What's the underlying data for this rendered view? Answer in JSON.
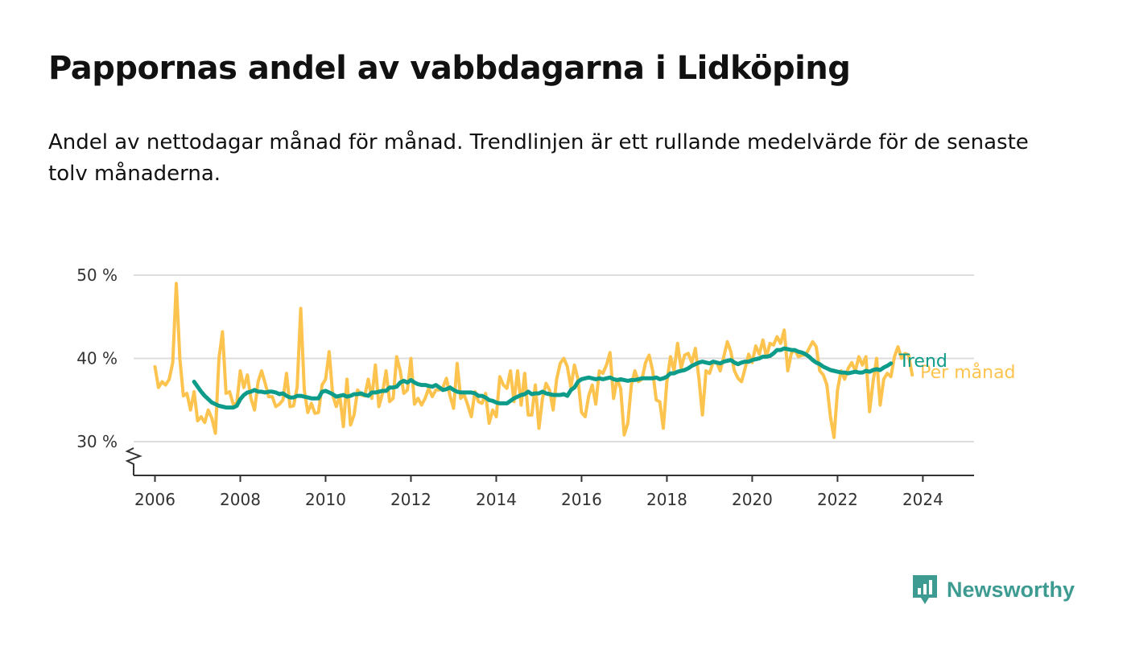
{
  "title": "Pappornas andel av vabbdagarna i Lidköping",
  "subtitle": "Andel av nettodagar månad för månad. Trendlinjen är ett rullande medelvärde för de senaste tolv månaderna.",
  "brand": {
    "name": "Newsworthy",
    "icon": "newsworthy-logo-icon",
    "color": "#3d9b91"
  },
  "chart_data": {
    "type": "line",
    "x_start": "2006-01",
    "x_step": "month",
    "xlim": [
      2005.5,
      2025.2
    ],
    "ylim": [
      26,
      50
    ],
    "y_axis_break": true,
    "grid": true,
    "y_ticks": [
      {
        "value": 30,
        "label": "30 %"
      },
      {
        "value": 40,
        "label": "40 %"
      },
      {
        "value": 50,
        "label": "50 %"
      }
    ],
    "x_ticks": [
      {
        "value": 2006,
        "label": "2006"
      },
      {
        "value": 2008,
        "label": "2008"
      },
      {
        "value": 2010,
        "label": "2010"
      },
      {
        "value": 2012,
        "label": "2012"
      },
      {
        "value": 2014,
        "label": "2014"
      },
      {
        "value": 2016,
        "label": "2016"
      },
      {
        "value": 2018,
        "label": "2018"
      },
      {
        "value": 2020,
        "label": "2020"
      },
      {
        "value": 2022,
        "label": "2022"
      },
      {
        "value": 2024,
        "label": "2024"
      }
    ],
    "series": [
      {
        "name": "Per månad",
        "color": "#fcc34e",
        "start_index": 0,
        "values": [
          39,
          36.5,
          37.2,
          36.8,
          37.5,
          39.5,
          49,
          40,
          35.5,
          35.8,
          33.8,
          36,
          32.5,
          33,
          32.3,
          33.8,
          32.8,
          31,
          40,
          43.2,
          35.8,
          36,
          34.5,
          34.6,
          38.5,
          36.5,
          38,
          35.2,
          33.8,
          37.2,
          38.5,
          37,
          35.4,
          35.4,
          34.2,
          34.5,
          35,
          38.2,
          34.2,
          34.3,
          36.5,
          46,
          36.2,
          33.5,
          34.6,
          33.4,
          33.5,
          36.8,
          37.5,
          40.8,
          35.6,
          34.2,
          35.5,
          31.8,
          37.5,
          32,
          33.2,
          36.2,
          35.6,
          35.5,
          37.5,
          35.2,
          39.2,
          34.2,
          35.8,
          38.5,
          34.8,
          35.2,
          40.2,
          38.5,
          35.8,
          36.2,
          40,
          34.5,
          35.2,
          34.4,
          35.2,
          36.4,
          35.4,
          36.2,
          36.2,
          36.5,
          37.6,
          35.5,
          34,
          39.4,
          35.2,
          35.6,
          34.4,
          33,
          36,
          34.8,
          34.6,
          35.8,
          32.2,
          33.8,
          33,
          37.8,
          36.8,
          36.4,
          38.5,
          34.8,
          38.5,
          34.4,
          38.2,
          33.2,
          33.2,
          36.8,
          31.6,
          35.2,
          37,
          36.2,
          33.8,
          37.5,
          39.4,
          40,
          39,
          36.5,
          39.2,
          37.5,
          33.5,
          33,
          35.5,
          36.8,
          34.5,
          38.5,
          38.2,
          39.2,
          40.7,
          35.2,
          37.5,
          36.4,
          30.8,
          32.2,
          36.8,
          38.5,
          37.2,
          37.5,
          39.5,
          40.4,
          38.5,
          35,
          34.8,
          31.6,
          37.2,
          40.2,
          38.5,
          41.8,
          38.8,
          40.4,
          40.6,
          39.5,
          41.2,
          37.6,
          33.2,
          38.5,
          38.2,
          39.5,
          39.5,
          38.5,
          40.2,
          42,
          40.8,
          38.5,
          37.6,
          37.2,
          38.8,
          40.5,
          39.5,
          41.5,
          40.5,
          42.2,
          40.2,
          41.8,
          41.6,
          42.6,
          41.8,
          43.4,
          38.5,
          40.6,
          41,
          40.2,
          40.4,
          40.4,
          41.2,
          42,
          41.4,
          38.5,
          38,
          36.8,
          33,
          30.5,
          36.2,
          38.5,
          37.5,
          38.8,
          39.5,
          38.5,
          40.2,
          39.2,
          40.2,
          33.6,
          37.2,
          40,
          34.4,
          37.5,
          38.2,
          37.8,
          40.2,
          41.4,
          40,
          40.6,
          40.4,
          38
        ]
      },
      {
        "name": "Trend",
        "color": "#0d9c8a",
        "start_index": 11,
        "values": [
          37.2,
          36.6,
          36,
          35.5,
          35.1,
          34.7,
          34.5,
          34.3,
          34.2,
          34.1,
          34.1,
          34.1,
          34.3,
          35.1,
          35.6,
          35.9,
          36,
          36.2,
          36,
          36,
          35.9,
          36,
          36,
          35.9,
          35.7,
          35.8,
          35.5,
          35.3,
          35.3,
          35.5,
          35.5,
          35.4,
          35.3,
          35.2,
          35.2,
          35.2,
          36,
          36.1,
          35.9,
          35.7,
          35.4,
          35.5,
          35.6,
          35.4,
          35.5,
          35.7,
          35.7,
          35.8,
          35.6,
          35.5,
          35.9,
          35.9,
          36,
          36.1,
          36.1,
          36.5,
          36.5,
          36.6,
          37.1,
          37.3,
          37.1,
          37.4,
          37.1,
          36.9,
          36.8,
          36.8,
          36.7,
          36.6,
          36.8,
          36.5,
          36.2,
          36.3,
          36.5,
          36.2,
          36,
          35.9,
          35.9,
          35.9,
          35.9,
          35.8,
          35.5,
          35.5,
          35.3,
          35,
          34.9,
          34.7,
          34.6,
          34.6,
          34.6,
          34.9,
          35.2,
          35.4,
          35.6,
          35.7,
          36,
          35.7,
          35.8,
          35.8,
          36,
          35.8,
          35.7,
          35.6,
          35.6,
          35.6,
          35.7,
          35.5,
          36.2,
          36.5,
          37.2,
          37.5,
          37.6,
          37.7,
          37.6,
          37.5,
          37.6,
          37.5,
          37.6,
          37.7,
          37.5,
          37.4,
          37.5,
          37.4,
          37.3,
          37.4,
          37.4,
          37.5,
          37.6,
          37.6,
          37.6,
          37.6,
          37.7,
          37.5,
          37.6,
          37.8,
          38.2,
          38.2,
          38.4,
          38.5,
          38.6,
          38.8,
          39.1,
          39.3,
          39.5,
          39.6,
          39.5,
          39.4,
          39.6,
          39.5,
          39.4,
          39.6,
          39.7,
          39.8,
          39.5,
          39.3,
          39.5,
          39.6,
          39.6,
          39.8,
          39.9,
          40,
          40.2,
          40.2,
          40.3,
          40.6,
          41,
          41,
          41.2,
          41.1,
          41,
          41,
          40.8,
          40.7,
          40.5,
          40.2,
          39.8,
          39.5,
          39.3,
          39,
          38.8,
          38.6,
          38.5,
          38.4,
          38.3,
          38.3,
          38.2,
          38.3,
          38.4,
          38.3,
          38.3,
          38.5,
          38.4,
          38.6,
          38.7,
          38.6,
          38.9,
          39.1,
          39.4
        ]
      }
    ]
  }
}
